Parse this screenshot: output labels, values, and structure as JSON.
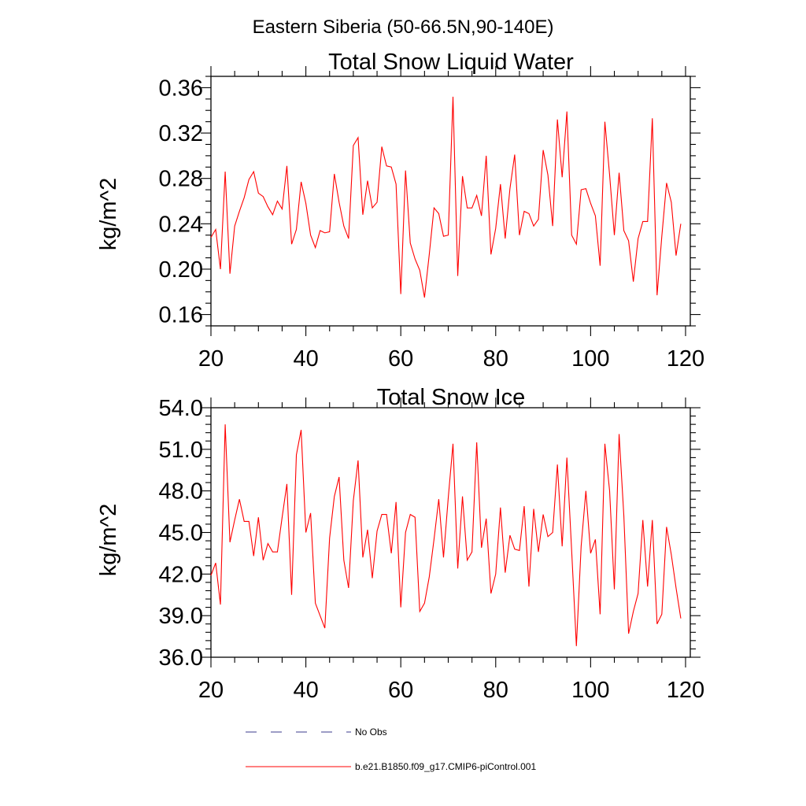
{
  "figure_title": "Eastern Siberia (50-66.5N,90-140E)",
  "colors": {
    "model": "#ff0000",
    "obs": "#3b3b8c",
    "axis": "#000000",
    "background": "#ffffff"
  },
  "legend": {
    "obs_label": "No Obs",
    "model_label": "b.e21.B1850.f09_g17.CMIP6-piControl.001"
  },
  "chart_data": [
    {
      "type": "line",
      "title": "Total Snow Liquid Water",
      "xlabel": "",
      "ylabel": "kg/m^2",
      "xlim": [
        20,
        121
      ],
      "ylim": [
        0.15,
        0.37
      ],
      "xticks": [
        20,
        40,
        60,
        80,
        100,
        120
      ],
      "xtick_labels": [
        "20",
        "40",
        "60",
        "80",
        "100",
        "120"
      ],
      "yticks": [
        0.16,
        0.2,
        0.24,
        0.28,
        0.32,
        0.36
      ],
      "ytick_labels": [
        "0.16",
        "0.20",
        "0.24",
        "0.28",
        "0.32",
        "0.36"
      ],
      "yminor_step": 0.01,
      "xminor_step": 5,
      "series": [
        {
          "name": "b.e21.B1850.f09_g17.CMIP6-piControl.001",
          "color": "#ff0000",
          "x_start": 20,
          "x_step": 1,
          "values": [
            0.228,
            0.235,
            0.2,
            0.286,
            0.196,
            0.238,
            0.251,
            0.263,
            0.279,
            0.286,
            0.267,
            0.264,
            0.255,
            0.248,
            0.26,
            0.253,
            0.291,
            0.222,
            0.235,
            0.277,
            0.258,
            0.23,
            0.219,
            0.234,
            0.232,
            0.233,
            0.284,
            0.259,
            0.238,
            0.227,
            0.309,
            0.316,
            0.248,
            0.278,
            0.254,
            0.259,
            0.308,
            0.291,
            0.29,
            0.275,
            0.178,
            0.287,
            0.223,
            0.209,
            0.199,
            0.175,
            0.213,
            0.254,
            0.249,
            0.229,
            0.23,
            0.352,
            0.194,
            0.282,
            0.254,
            0.254,
            0.265,
            0.247,
            0.3,
            0.213,
            0.236,
            0.275,
            0.227,
            0.271,
            0.301,
            0.23,
            0.251,
            0.249,
            0.238,
            0.244,
            0.305,
            0.283,
            0.238,
            0.332,
            0.281,
            0.339,
            0.23,
            0.222,
            0.27,
            0.271,
            0.258,
            0.247,
            0.203,
            0.33,
            0.283,
            0.23,
            0.285,
            0.234,
            0.225,
            0.189,
            0.227,
            0.242,
            0.242,
            0.333,
            0.177,
            0.229,
            0.276,
            0.259,
            0.212,
            0.24
          ]
        }
      ]
    },
    {
      "type": "line",
      "title": "Total Snow Ice",
      "xlabel": "",
      "ylabel": "kg/m^2",
      "xlim": [
        20,
        121
      ],
      "ylim": [
        36.0,
        54.0
      ],
      "xticks": [
        20,
        40,
        60,
        80,
        100,
        120
      ],
      "xtick_labels": [
        "20",
        "40",
        "60",
        "80",
        "100",
        "120"
      ],
      "yticks": [
        36.0,
        39.0,
        42.0,
        45.0,
        48.0,
        51.0,
        54.0
      ],
      "ytick_labels": [
        "36.0",
        "39.0",
        "42.0",
        "45.0",
        "48.0",
        "51.0",
        "54.0"
      ],
      "yminor_step": 0.6,
      "xminor_step": 5,
      "series": [
        {
          "name": "b.e21.B1850.f09_g17.CMIP6-piControl.001",
          "color": "#ff0000",
          "x_start": 20,
          "x_step": 1,
          "values": [
            41.9,
            42.8,
            39.8,
            52.8,
            44.3,
            45.9,
            47.4,
            45.8,
            45.8,
            43.3,
            46.1,
            43.0,
            44.2,
            43.6,
            43.6,
            46.1,
            48.5,
            40.5,
            50.6,
            52.4,
            45.0,
            46.4,
            39.9,
            39.0,
            38.1,
            44.6,
            47.6,
            49.0,
            43.0,
            41.0,
            47.3,
            50.2,
            43.2,
            45.2,
            41.7,
            45.1,
            46.3,
            46.3,
            43.5,
            47.2,
            39.6,
            45.0,
            46.3,
            46.1,
            39.3,
            39.9,
            41.8,
            44.5,
            47.4,
            43.2,
            47.5,
            51.4,
            42.4,
            47.6,
            43.0,
            43.6,
            51.5,
            43.9,
            46.0,
            40.6,
            42.0,
            46.8,
            42.1,
            44.8,
            43.8,
            43.7,
            46.9,
            41.1,
            46.7,
            43.6,
            46.3,
            44.7,
            45.0,
            49.9,
            44.0,
            50.4,
            43.7,
            36.8,
            44.0,
            48.0,
            43.5,
            44.5,
            39.1,
            51.4,
            48.0,
            40.9,
            52.1,
            46.2,
            37.7,
            39.3,
            40.6,
            45.9,
            41.1,
            45.9,
            38.4,
            39.1,
            45.4,
            43.4,
            41.0,
            38.8
          ]
        }
      ]
    }
  ]
}
